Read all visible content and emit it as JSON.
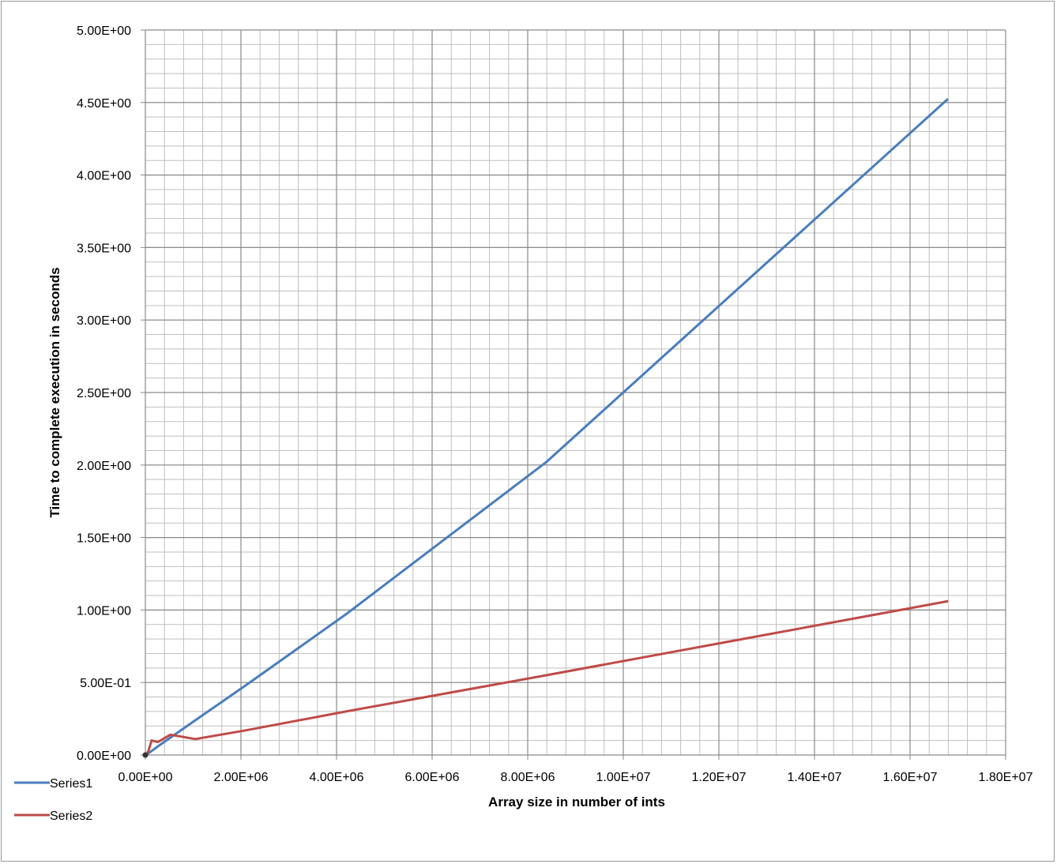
{
  "chart_data": {
    "type": "line",
    "title": "",
    "xlabel": "Array size in number of ints",
    "ylabel": "Time to complete execution in seconds",
    "xlim": [
      0,
      18000000
    ],
    "ylim": [
      0,
      5
    ],
    "x_ticks": [
      {
        "value": 0,
        "label": "0.00E+00"
      },
      {
        "value": 2000000,
        "label": "2.00E+06"
      },
      {
        "value": 4000000,
        "label": "4.00E+06"
      },
      {
        "value": 6000000,
        "label": "6.00E+06"
      },
      {
        "value": 8000000,
        "label": "8.00E+06"
      },
      {
        "value": 10000000,
        "label": "1.00E+07"
      },
      {
        "value": 12000000,
        "label": "1.20E+07"
      },
      {
        "value": 14000000,
        "label": "1.40E+07"
      },
      {
        "value": 16000000,
        "label": "1.60E+07"
      },
      {
        "value": 18000000,
        "label": "1.80E+07"
      }
    ],
    "y_ticks": [
      {
        "value": 0,
        "label": "0.00E+00"
      },
      {
        "value": 0.5,
        "label": "5.00E-01"
      },
      {
        "value": 1.0,
        "label": "1.00E+00"
      },
      {
        "value": 1.5,
        "label": "1.50E+00"
      },
      {
        "value": 2.0,
        "label": "2.00E+00"
      },
      {
        "value": 2.5,
        "label": "2.50E+00"
      },
      {
        "value": 3.0,
        "label": "3.00E+00"
      },
      {
        "value": 3.5,
        "label": "3.50E+00"
      },
      {
        "value": 4.0,
        "label": "4.00E+00"
      },
      {
        "value": 4.5,
        "label": "4.50E+00"
      },
      {
        "value": 5.0,
        "label": "5.00E+00"
      }
    ],
    "grid": true,
    "minor_grid_x_step": 400000,
    "minor_grid_y_step": 0.1,
    "legend_position": "bottom-left",
    "series": [
      {
        "name": "Series1",
        "color": "#4a7ebb",
        "x": [
          16384,
          32768,
          65536,
          131072,
          262144,
          524288,
          1048576,
          2097152,
          4194304,
          8388608,
          16777216
        ],
        "y": [
          0.002,
          0.005,
          0.012,
          0.028,
          0.06,
          0.12,
          0.24,
          0.48,
          0.97,
          2.02,
          4.52
        ]
      },
      {
        "name": "Series2",
        "color": "#be4b48",
        "x": [
          16384,
          32768,
          65536,
          131072,
          262144,
          524288,
          1048576,
          2097152,
          4194304,
          8388608,
          16777216
        ],
        "y": [
          0.002,
          0.008,
          0.03,
          0.1,
          0.09,
          0.14,
          0.11,
          0.17,
          0.3,
          0.55,
          1.06
        ]
      }
    ]
  }
}
